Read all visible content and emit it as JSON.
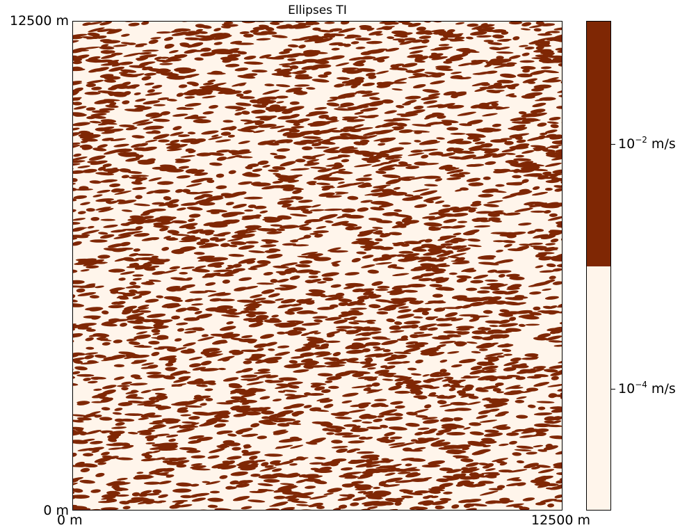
{
  "chart_data": {
    "type": "heatmap",
    "title": "Ellipses TI",
    "xlabel": "",
    "ylabel": "",
    "x_ticks": [
      "0 m",
      "12500 m"
    ],
    "y_ticks": [
      "0 m",
      "12500 m"
    ],
    "xlim": [
      0,
      12500
    ],
    "ylim": [
      0,
      12500
    ],
    "grid": false,
    "categories": [
      {
        "name": "low",
        "base": "10",
        "exponent": "−4",
        "unit": " m/s",
        "color": "#fff5eb"
      },
      {
        "name": "high",
        "base": "10",
        "exponent": "−2",
        "unit": " m/s",
        "color": "#7f2704"
      }
    ],
    "colorbar": {
      "placement": "right"
    },
    "high_fraction_approx": 0.35,
    "ellipse_orientation": "near-horizontal",
    "ellipse_count_approx": 3500
  }
}
